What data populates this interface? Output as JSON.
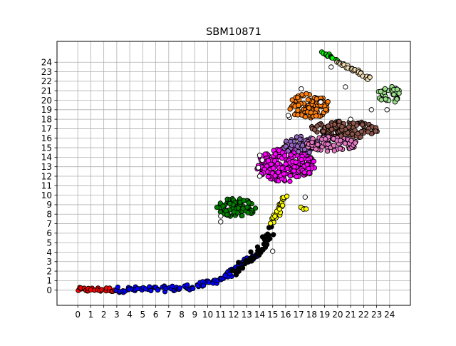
{
  "chart_data": {
    "type": "scatter",
    "title": "SBM10871",
    "xlabel": "",
    "ylabel": "",
    "xlim": [
      -1.6,
      25.6
    ],
    "ylim": [
      -1.6,
      26.2
    ],
    "xticks": [
      0,
      1,
      2,
      3,
      4,
      5,
      6,
      7,
      8,
      9,
      10,
      11,
      12,
      13,
      14,
      15,
      16,
      17,
      18,
      19,
      20,
      21,
      22,
      23,
      24
    ],
    "yticks": [
      0,
      1,
      2,
      3,
      4,
      5,
      6,
      7,
      8,
      9,
      10,
      11,
      12,
      13,
      14,
      15,
      16,
      17,
      18,
      19,
      20,
      21,
      22,
      23,
      24
    ],
    "grid": true,
    "marker_edge": "#000000",
    "clusters": [
      {
        "color": "#ff0000",
        "shape": "band",
        "points": [
          [
            0,
            0.05
          ],
          [
            3,
            0.05
          ]
        ],
        "width": 0.45
      },
      {
        "color": "#0000ff",
        "shape": "band",
        "points": [
          [
            3,
            0.05
          ],
          [
            6,
            0.1
          ],
          [
            8,
            0.2
          ],
          [
            9,
            0.4
          ],
          [
            10,
            0.7
          ],
          [
            11,
            1.2
          ],
          [
            12,
            2.0
          ],
          [
            13,
            3.1
          ],
          [
            14,
            3.9
          ]
        ],
        "width": 0.6
      },
      {
        "color": "#000000",
        "shape": "band",
        "points": [
          [
            12,
            1.8
          ],
          [
            13,
            2.9
          ],
          [
            14,
            4.2
          ],
          [
            15,
            6.5
          ]
        ],
        "width": 0.9
      },
      {
        "color": "#ffff00",
        "shape": "band",
        "points": [
          [
            15,
            7.2
          ],
          [
            15.5,
            8.5
          ],
          [
            16,
            10.0
          ]
        ],
        "width": 0.7
      },
      {
        "color": "#ffff00",
        "shape": "band",
        "points": [
          [
            17.2,
            8.6
          ],
          [
            17.6,
            8.5
          ]
        ],
        "width": 0.4
      },
      {
        "color": "#008000",
        "shape": "blob",
        "cx": 12.2,
        "cy": 8.7,
        "rx": 1.5,
        "ry": 1.0
      },
      {
        "color": "#ff00ff",
        "shape": "blob",
        "cx": 16.0,
        "cy": 13.2,
        "rx": 2.3,
        "ry": 1.8
      },
      {
        "color": "#9467bd",
        "shape": "blob",
        "cx": 17.2,
        "cy": 15.3,
        "rx": 1.5,
        "ry": 0.9
      },
      {
        "color": "#ff7f0e",
        "shape": "blob",
        "cx": 17.8,
        "cy": 19.4,
        "rx": 1.6,
        "ry": 1.3
      },
      {
        "color": "#8c564b",
        "shape": "blob",
        "cx": 20.5,
        "cy": 16.9,
        "rx": 2.7,
        "ry": 0.9
      },
      {
        "color": "#e377c2",
        "shape": "blob",
        "cx": 19.5,
        "cy": 15.4,
        "rx": 2.0,
        "ry": 0.8
      },
      {
        "color": "#98df8a",
        "shape": "blob",
        "cx": 24.0,
        "cy": 20.6,
        "rx": 0.9,
        "ry": 0.9
      },
      {
        "color": "#00ff00",
        "shape": "band",
        "points": [
          [
            18.8,
            25.0
          ],
          [
            20.0,
            24.2
          ]
        ],
        "width": 0.45
      },
      {
        "color": "#f5deb3",
        "shape": "band",
        "points": [
          [
            20.0,
            24.2
          ],
          [
            22.5,
            22.2
          ]
        ],
        "width": 0.45
      },
      {
        "color": "#ffffff",
        "shape": "scatter",
        "points": [
          [
            11,
            7.2
          ],
          [
            11,
            7.8
          ],
          [
            14,
            12.0
          ],
          [
            14,
            14.2
          ],
          [
            16.3,
            18.2
          ],
          [
            17.2,
            21.2
          ],
          [
            17.5,
            9.8
          ],
          [
            15,
            4.1
          ],
          [
            19.5,
            23.5
          ],
          [
            20.6,
            21.4
          ],
          [
            21.0,
            18.0
          ],
          [
            22.6,
            19.0
          ],
          [
            23.8,
            19.0
          ],
          [
            18.7,
            19.8
          ],
          [
            16.2,
            18.4
          ],
          [
            14.2,
            13.7
          ],
          [
            13.9,
            12.9
          ]
        ]
      }
    ]
  }
}
